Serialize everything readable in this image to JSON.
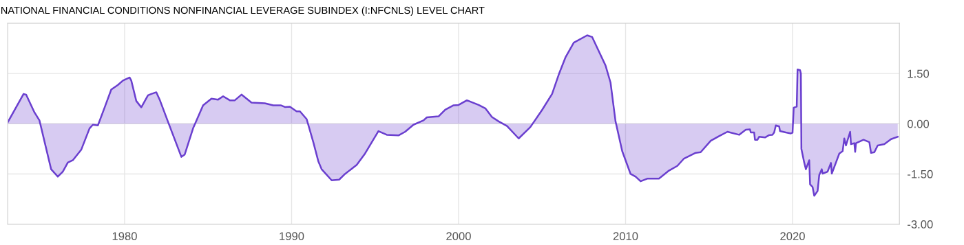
{
  "chart_data": {
    "type": "area",
    "title": "NATIONAL FINANCIAL CONDITIONS NONFINANCIAL LEVERAGE SUBINDEX (I:NFCNLS) LEVEL CHART",
    "x": [
      1973.0,
      1973.95,
      1974.1,
      1974.6,
      1974.9,
      1975.6,
      1976.0,
      1976.3,
      1976.6,
      1976.9,
      1977.4,
      1977.9,
      1978.1,
      1978.4,
      1978.8,
      1979.2,
      1979.6,
      1979.9,
      1980.3,
      1980.4,
      1980.7,
      1981.0,
      1981.4,
      1981.6,
      1981.9,
      1982.1,
      1982.75,
      1983.4,
      1983.6,
      1984.1,
      1984.7,
      1985.2,
      1985.6,
      1985.9,
      1986.3,
      1986.6,
      1987.0,
      1987.6,
      1988.4,
      1988.9,
      1989.35,
      1989.6,
      1989.9,
      1990.3,
      1990.5,
      1990.9,
      1991.3,
      1991.6,
      1991.8,
      1992.4,
      1992.85,
      1993.2,
      1993.9,
      1994.4,
      1995.2,
      1995.7,
      1996.4,
      1996.8,
      1997.3,
      1997.9,
      1998.1,
      1998.8,
      1999.2,
      1999.7,
      2000.0,
      2000.5,
      2001.2,
      2001.6,
      2002.0,
      2002.4,
      2002.9,
      2003.6,
      2004.3,
      2005.0,
      2005.6,
      2006.0,
      2006.4,
      2006.9,
      2007.7,
      2008.0,
      2008.45,
      2008.8,
      2009.1,
      2009.4,
      2009.8,
      2010.3,
      2010.6,
      2010.9,
      2011.3,
      2012.0,
      2012.6,
      2013.1,
      2013.5,
      2014.2,
      2014.5,
      2015.1,
      2015.6,
      2016.1,
      2016.8,
      2017.2,
      2017.45,
      2017.5,
      2017.7,
      2017.75,
      2017.9,
      2018.0,
      2018.35,
      2018.6,
      2018.8,
      2018.9,
      2019.0,
      2019.2,
      2019.25,
      2019.6,
      2019.9,
      2020.0,
      2020.07,
      2020.25,
      2020.3,
      2020.45,
      2020.5,
      2020.53,
      2020.7,
      2020.8,
      2021.0,
      2021.05,
      2021.2,
      2021.3,
      2021.5,
      2021.6,
      2021.75,
      2021.8,
      2022.1,
      2022.3,
      2022.35,
      2022.6,
      2022.8,
      2023.0,
      2023.1,
      2023.2,
      2023.45,
      2023.5,
      2023.7,
      2023.75,
      2023.8,
      2024.25,
      2024.6,
      2024.7,
      2024.9,
      2025.1,
      2025.5,
      2025.9,
      2026.3
    ],
    "series": [
      {
        "color": "#6a3fcf",
        "values": [
          0.04,
          0.89,
          0.87,
          0.34,
          0.1,
          -1.36,
          -1.58,
          -1.43,
          -1.16,
          -1.09,
          -0.78,
          -0.14,
          -0.03,
          -0.05,
          0.48,
          1.02,
          1.16,
          1.29,
          1.38,
          1.29,
          0.68,
          0.49,
          0.85,
          0.89,
          0.94,
          0.72,
          -0.14,
          -0.99,
          -0.92,
          -0.14,
          0.55,
          0.75,
          0.72,
          0.82,
          0.7,
          0.7,
          0.87,
          0.63,
          0.61,
          0.55,
          0.55,
          0.5,
          0.51,
          0.37,
          0.37,
          0.14,
          -0.55,
          -1.12,
          -1.36,
          -1.69,
          -1.67,
          -1.5,
          -1.23,
          -0.89,
          -0.22,
          -0.33,
          -0.35,
          -0.24,
          -0.03,
          0.1,
          0.19,
          0.22,
          0.42,
          0.55,
          0.56,
          0.7,
          0.56,
          0.46,
          0.2,
          0.07,
          -0.07,
          -0.44,
          -0.1,
          0.41,
          0.89,
          1.47,
          1.98,
          2.42,
          2.64,
          2.59,
          2.11,
          1.74,
          1.23,
          0.07,
          -0.82,
          -1.5,
          -1.58,
          -1.72,
          -1.64,
          -1.64,
          -1.4,
          -1.26,
          -1.04,
          -0.87,
          -0.85,
          -0.51,
          -0.37,
          -0.24,
          -0.33,
          -0.18,
          -0.17,
          -0.26,
          -0.26,
          -0.48,
          -0.48,
          -0.39,
          -0.41,
          -0.34,
          -0.33,
          -0.26,
          -0.05,
          -0.08,
          -0.22,
          -0.26,
          -0.29,
          -0.27,
          0.48,
          0.51,
          1.62,
          1.6,
          1.5,
          -0.75,
          -1.16,
          -1.36,
          -1.09,
          -1.81,
          -1.89,
          -2.15,
          -2.01,
          -1.53,
          -1.36,
          -1.49,
          -1.43,
          -1.17,
          -1.49,
          -1.16,
          -0.89,
          -0.82,
          -0.44,
          -0.65,
          -0.24,
          -0.61,
          -0.58,
          -0.84,
          -0.58,
          -0.48,
          -0.55,
          -0.87,
          -0.85,
          -0.65,
          -0.61,
          -0.46,
          -0.39
        ]
      }
    ],
    "xlim": [
      1973.0,
      2026.4
    ],
    "ylim": [
      -3.0,
      3.0
    ],
    "xticks": [
      1980,
      1990,
      2000,
      2010,
      2020
    ],
    "yticks": [
      {
        "value": -3.0,
        "label": "-3.00"
      },
      {
        "value": -1.5,
        "label": "-1.50"
      },
      {
        "value": 0.0,
        "label": "0.00"
      },
      {
        "value": 1.5,
        "label": "1.50"
      }
    ],
    "grid": true,
    "legend": false
  }
}
